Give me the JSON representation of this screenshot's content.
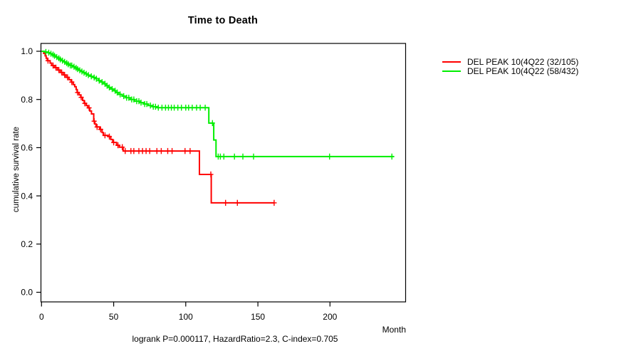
{
  "title": "Time to Death",
  "y_axis": {
    "label": "cumulative survival rate"
  },
  "x_axis": {
    "label": "Month"
  },
  "footer": "logrank P=0.000117, HazardRatio=2.3, C-index=0.705",
  "legend": {
    "items": [
      {
        "label": "DEL PEAK 10(4Q22 (32/105)",
        "color": "#ff0000"
      },
      {
        "label": "DEL PEAK 10(4Q22 (58/432)",
        "color": "#00ee00"
      }
    ]
  },
  "chart_data": {
    "type": "line",
    "subtype": "kaplan-meier-step",
    "title": "Time to Death",
    "xlabel": "Month",
    "ylabel": "cumulative survival rate",
    "xlim": [
      0,
      253
    ],
    "ylim": [
      0,
      1
    ],
    "grid": false,
    "legend_position": "right-outside",
    "annotation": "logrank P=0.000117, HazardRatio=2.3, C-index=0.705",
    "x_ticks": [
      {
        "v": 0,
        "label": "0"
      },
      {
        "v": 50,
        "label": "50"
      },
      {
        "v": 100,
        "label": "100"
      },
      {
        "v": 150,
        "label": "150"
      },
      {
        "v": 200,
        "label": "200"
      }
    ],
    "y_ticks": [
      {
        "v": 0.0,
        "label": "0.0"
      },
      {
        "v": 0.2,
        "label": "0.2"
      },
      {
        "v": 0.4,
        "label": "0.4"
      },
      {
        "v": 0.6,
        "label": "0.6"
      },
      {
        "v": 0.8,
        "label": "0.8"
      },
      {
        "v": 1.0,
        "label": "1.0"
      }
    ],
    "series": [
      {
        "id": "group-1",
        "name": "DEL PEAK 10(4Q22 (32/105)",
        "color": "#ff0000",
        "start": 1.0,
        "steps": [
          [
            1.5,
            0.991
          ],
          [
            2.5,
            0.981
          ],
          [
            3.2,
            0.971
          ],
          [
            4,
            0.961
          ],
          [
            6,
            0.951
          ],
          [
            7,
            0.941
          ],
          [
            9,
            0.932
          ],
          [
            11,
            0.922
          ],
          [
            13,
            0.912
          ],
          [
            15,
            0.902
          ],
          [
            17,
            0.892
          ],
          [
            19,
            0.882
          ],
          [
            20.5,
            0.872
          ],
          [
            22,
            0.862
          ],
          [
            23,
            0.853
          ],
          [
            24,
            0.841
          ],
          [
            24.7,
            0.829
          ],
          [
            26,
            0.819
          ],
          [
            27.2,
            0.809
          ],
          [
            28.5,
            0.796
          ],
          [
            29.6,
            0.784
          ],
          [
            31,
            0.775
          ],
          [
            32.1,
            0.765
          ],
          [
            33.5,
            0.752
          ],
          [
            34.6,
            0.74
          ],
          [
            36.2,
            0.71
          ],
          [
            37,
            0.698
          ],
          [
            37.9,
            0.686
          ],
          [
            40.3,
            0.676
          ],
          [
            42,
            0.663
          ],
          [
            42.8,
            0.651
          ],
          [
            46.1,
            0.646
          ],
          [
            48,
            0.634
          ],
          [
            49.4,
            0.622
          ],
          [
            52,
            0.61
          ],
          [
            54,
            0.602
          ],
          [
            56.6,
            0.586
          ],
          [
            109.5,
            0.489
          ],
          [
            117.7,
            0.371
          ]
        ],
        "end_month": 161.3,
        "censor_months": [
          4.5,
          8,
          10,
          12,
          14,
          16,
          18,
          21,
          25,
          27.5,
          30,
          33,
          36.5,
          38.5,
          41,
          44,
          47,
          50,
          53,
          56,
          58,
          62,
          64,
          67.5,
          70,
          72.5,
          75,
          80,
          83,
          87.5,
          90.5,
          99.5,
          103,
          117.4,
          127.6,
          135.8,
          161.3
        ]
      },
      {
        "id": "group-2",
        "name": "DEL PEAK 10(4Q22 (58/432)",
        "color": "#00ee00",
        "start": 1.0,
        "steps": [
          [
            2,
            0.997
          ],
          [
            4,
            0.994
          ],
          [
            5.5,
            0.99
          ],
          [
            7,
            0.986
          ],
          [
            8.2,
            0.981
          ],
          [
            9.5,
            0.976
          ],
          [
            11,
            0.971
          ],
          [
            12.5,
            0.966
          ],
          [
            14,
            0.961
          ],
          [
            15.5,
            0.956
          ],
          [
            17,
            0.951
          ],
          [
            18.5,
            0.946
          ],
          [
            20,
            0.941
          ],
          [
            21.5,
            0.936
          ],
          [
            23,
            0.931
          ],
          [
            24.5,
            0.926
          ],
          [
            26,
            0.921
          ],
          [
            27.5,
            0.916
          ],
          [
            29,
            0.911
          ],
          [
            30.5,
            0.906
          ],
          [
            32,
            0.901
          ],
          [
            34,
            0.896
          ],
          [
            36,
            0.891
          ],
          [
            38,
            0.886
          ],
          [
            39.5,
            0.878
          ],
          [
            41,
            0.872
          ],
          [
            43,
            0.865
          ],
          [
            45,
            0.857
          ],
          [
            46.5,
            0.85
          ],
          [
            48,
            0.843
          ],
          [
            50,
            0.836
          ],
          [
            51.5,
            0.829
          ],
          [
            53.5,
            0.821
          ],
          [
            56,
            0.814
          ],
          [
            58.5,
            0.807
          ],
          [
            61.5,
            0.8
          ],
          [
            64.5,
            0.793
          ],
          [
            68,
            0.787
          ],
          [
            71,
            0.781
          ],
          [
            74,
            0.775
          ],
          [
            77,
            0.77
          ],
          [
            80,
            0.766
          ],
          [
            116,
            0.702
          ],
          [
            119.4,
            0.632
          ],
          [
            121,
            0.563
          ]
        ],
        "end_month": 244.3,
        "censor_months": [
          3,
          5,
          6.5,
          8,
          9,
          10.5,
          12,
          13,
          14.5,
          16,
          17.5,
          18.5,
          20,
          21,
          22.5,
          24,
          25,
          26.5,
          28,
          29.5,
          31,
          32.5,
          34.5,
          36.5,
          38,
          40,
          42,
          44,
          45.5,
          47,
          49,
          51,
          52.5,
          54.5,
          57,
          59,
          60.5,
          62.5,
          64,
          66,
          67.5,
          69,
          71.5,
          73,
          75.5,
          77.5,
          79,
          81,
          83.5,
          86,
          88,
          90,
          92,
          94.5,
          97,
          100,
          102,
          104.5,
          107.5,
          110,
          113.5,
          118.5,
          122.5,
          124,
          126.4,
          133.8,
          139.6,
          147,
          199.7,
          242.9
        ]
      }
    ]
  }
}
